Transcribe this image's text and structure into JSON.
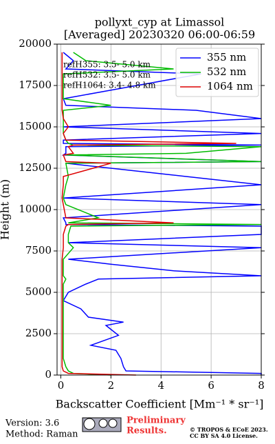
{
  "chart_data": {
    "type": "line",
    "title": "pollyxt_cyp at Limassol",
    "subtitle": "[Averaged] 20230320 06:00-06:59",
    "x_label": "Backscatter Coefficient [Mm⁻¹ * sr⁻¹]",
    "y_label": "Height (m)",
    "annotations": [
      "refH355:  3.5- 5.0 km",
      "refH532:  3.5- 5.0 km",
      "refH1064:  3.4- 4.8 km"
    ],
    "xlim": [
      -0.15,
      8
    ],
    "xticks": [
      0,
      2,
      4,
      6,
      8
    ],
    "ylim": [
      0,
      20000
    ],
    "yticks": [
      0,
      2500,
      5000,
      7500,
      10000,
      12500,
      15000,
      17500,
      20000
    ],
    "grid": true,
    "legend": "upper right",
    "heights": [
      0,
      100,
      250,
      500,
      1000,
      1500,
      1800,
      2400,
      3000,
      3200,
      3500,
      4000,
      4500,
      5000,
      5500,
      5800,
      6000,
      6300,
      6700,
      7000,
      7700,
      8000,
      8500,
      9000,
      9100,
      9200,
      9500,
      10300,
      10700,
      11500,
      12000,
      12800,
      12900,
      13300,
      13400,
      13800,
      13900,
      14000,
      14200,
      14600,
      15000,
      15500,
      16000,
      16300,
      16700,
      18200,
      18500,
      19000,
      19500
    ],
    "series": [
      {
        "name": "355 nm",
        "color": "#0000ff",
        "values": [
          8,
          8,
          2.6,
          2.5,
          2.4,
          2.2,
          1.2,
          2.3,
          1.8,
          2.5,
          1.1,
          0.8,
          0.1,
          0.3,
          1.0,
          1.5,
          8,
          4.5,
          2,
          0.3,
          8,
          0.3,
          8,
          8,
          0.2,
          0.2,
          0.1,
          8,
          0.1,
          8,
          5,
          0.2,
          8,
          0.1,
          0.2,
          0.2,
          8,
          0.1,
          0.1,
          8,
          0.1,
          8,
          5.4,
          0.2,
          0.1,
          5.6,
          0.2,
          0.5,
          0.1
        ]
      },
      {
        "name": "532 nm",
        "color": "#00bb00",
        "values": [
          2,
          0.5,
          0.3,
          0.2,
          0.1,
          0.1,
          0.1,
          0.1,
          0.1,
          0.1,
          0.1,
          0.1,
          0.1,
          0.1,
          0.1,
          0.2,
          0.1,
          0.1,
          0.1,
          0.1,
          0.5,
          0.3,
          0.3,
          0.4,
          8,
          0.3,
          1.5,
          0.2,
          0.1,
          0.2,
          0.3,
          0.2,
          8,
          0.2,
          5,
          8,
          0.5,
          0.3,
          0.2,
          0.1,
          0.1,
          0.1,
          0.1,
          2,
          0.1,
          0.1,
          4.5,
          1,
          0.5
        ]
      },
      {
        "name": "1064 nm",
        "color": "#dd0000",
        "values": [
          3,
          0.3,
          0.1,
          0.05,
          0.05,
          0.05,
          0.05,
          0.05,
          0.05,
          0.05,
          0.05,
          0.05,
          0.05,
          0.05,
          0.05,
          0.05,
          0.05,
          0.05,
          0.05,
          0.05,
          0.1,
          0.1,
          0.1,
          0.2,
          0.3,
          4.5,
          0.2,
          0.1,
          0.05,
          0.1,
          0.1,
          2,
          0.2,
          0.1,
          0.5,
          0.3,
          0.5,
          7,
          0.2,
          0.1,
          0.3,
          0.1,
          0.05,
          0.05,
          0.05,
          0.05,
          0.05,
          0.05,
          0.05
        ]
      }
    ]
  },
  "footer": {
    "version": "Version: 3.6",
    "method": "Method: Raman",
    "status": [
      "Preliminary",
      "Results."
    ],
    "copyright": [
      "© TROPOS & ECoE 2023.",
      "CC BY SA 4.0 License."
    ]
  }
}
